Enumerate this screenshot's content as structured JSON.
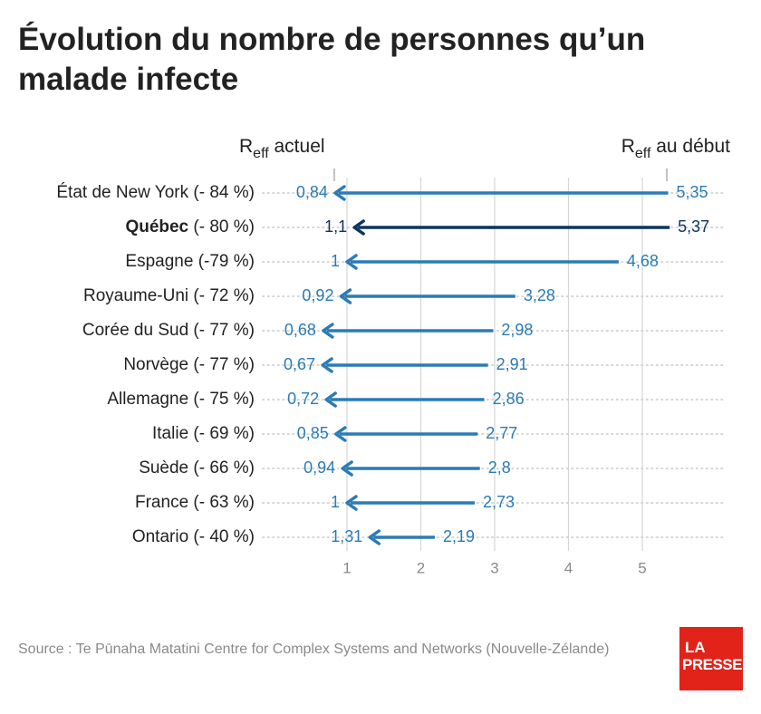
{
  "title": "Évolution du nombre de personnes qu’un malade infecte",
  "source": "Source : Te Pūnaha Matatini Centre for Complex Systems and Networks (Nouvelle-Zélande)",
  "logo": {
    "line1": "LA",
    "line2": "PRESSE"
  },
  "colors": {
    "arrow": "#2b7bb5",
    "highlight": "#0d3460",
    "grid": "#d6d6d6",
    "dots": "#c8c8c8"
  },
  "chart_data": {
    "type": "bar",
    "header_current": {
      "base": "R",
      "sub": "eff",
      "rest": " actuel"
    },
    "header_start": {
      "base": "R",
      "sub": "eff",
      "rest": " au début"
    },
    "xlim": [
      0.4,
      5.55
    ],
    "xticks": [
      1,
      2,
      3,
      4,
      5
    ],
    "xtick_labels": [
      "1",
      "2",
      "3",
      "4",
      "5"
    ],
    "rows": [
      {
        "name": "État de New York",
        "change": " (- 84 %)",
        "start": 5.35,
        "start_label": "5,35",
        "current": 0.84,
        "current_label": "0,84",
        "highlight": false
      },
      {
        "name": "Québec",
        "change": " (- 80 %)",
        "start": 5.37,
        "start_label": "5,37",
        "current": 1.1,
        "current_label": "1,1",
        "highlight": true
      },
      {
        "name": "Espagne",
        "change": " (-79 %)",
        "start": 4.68,
        "start_label": "4,68",
        "current": 1,
        "current_label": "1",
        "highlight": false
      },
      {
        "name": "Royaume-Uni",
        "change": " (- 72 %)",
        "start": 3.28,
        "start_label": "3,28",
        "current": 0.92,
        "current_label": "0,92",
        "highlight": false
      },
      {
        "name": "Corée du Sud",
        "change": " (- 77 %)",
        "start": 2.98,
        "start_label": "2,98",
        "current": 0.68,
        "current_label": "0,68",
        "highlight": false
      },
      {
        "name": "Norvège",
        "change": " (- 77 %)",
        "start": 2.91,
        "start_label": "2,91",
        "current": 0.67,
        "current_label": "0,67",
        "highlight": false
      },
      {
        "name": "Allemagne",
        "change": " (- 75 %)",
        "start": 2.86,
        "start_label": "2,86",
        "current": 0.72,
        "current_label": "0,72",
        "highlight": false
      },
      {
        "name": "Italie",
        "change": " (- 69 %)",
        "start": 2.77,
        "start_label": "2,77",
        "current": 0.85,
        "current_label": "0,85",
        "highlight": false
      },
      {
        "name": "Suède",
        "change": " (- 66 %)",
        "start": 2.8,
        "start_label": "2,8",
        "current": 0.94,
        "current_label": "0,94",
        "highlight": false
      },
      {
        "name": "France",
        "change": " (- 63 %)",
        "start": 2.73,
        "start_label": "2,73",
        "current": 1,
        "current_label": "1",
        "highlight": false
      },
      {
        "name": "Ontario",
        "change": " (- 40 %)",
        "start": 2.19,
        "start_label": "2,19",
        "current": 1.31,
        "current_label": "1,31",
        "highlight": false
      }
    ]
  }
}
